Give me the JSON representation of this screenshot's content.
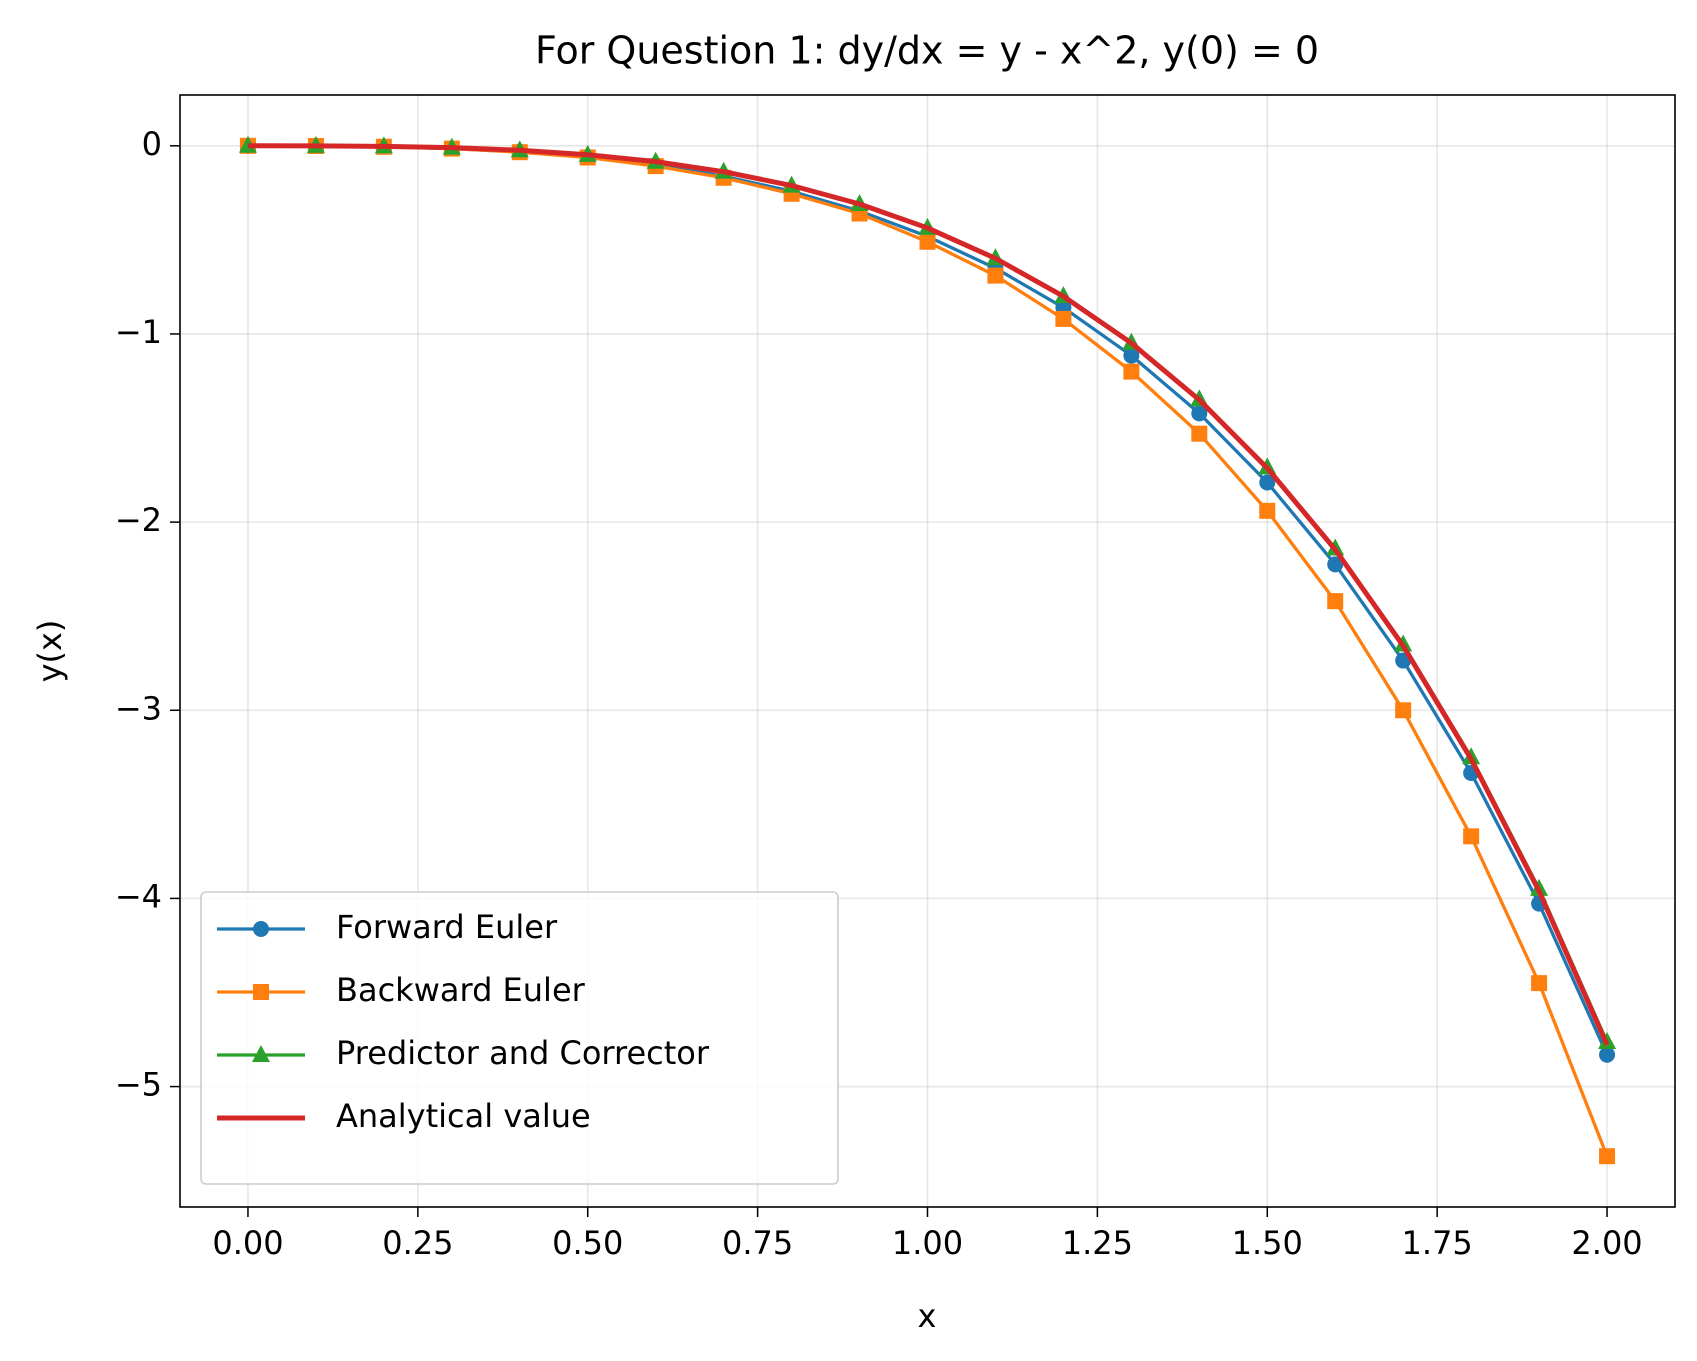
{
  "chart_data": {
    "type": "line",
    "title": "For Question 1: dy/dx = y - x^2, y(0) = 0",
    "xlabel": "x",
    "ylabel": "y(x)",
    "x": [
      0,
      0.1,
      0.2,
      0.3,
      0.4,
      0.5,
      0.6,
      0.7,
      0.8,
      0.9,
      1.0,
      1.1,
      1.2,
      1.3,
      1.4,
      1.5,
      1.6,
      1.7,
      1.8,
      1.9,
      2.0
    ],
    "series": [
      {
        "name": "Forward Euler",
        "color": "#1f77b4",
        "marker": "circle",
        "values": [
          0,
          -0.001,
          -0.0051,
          -0.0146,
          -0.0321,
          -0.0603,
          -0.1023,
          -0.1615,
          -0.2417,
          -0.3469,
          -0.4815,
          -0.6507,
          -0.8598,
          -1.1147,
          -1.4222,
          -1.7894,
          -2.2244,
          -2.7358,
          -3.3334,
          -4.0278,
          -4.8305
        ]
      },
      {
        "name": "Backward Euler",
        "color": "#ff7f0e",
        "marker": "square",
        "values": [
          0,
          -0.001,
          -0.005,
          -0.015,
          -0.034,
          -0.062,
          -0.108,
          -0.17,
          -0.255,
          -0.36,
          -0.51,
          -0.69,
          -0.92,
          -1.2,
          -1.53,
          -1.94,
          -2.42,
          -3.0,
          -3.67,
          -4.45,
          -5.37
        ]
      },
      {
        "name": "Predictor and Corrector",
        "color": "#2ca02c",
        "marker": "triangle",
        "values": [
          0,
          -0.0005,
          -0.0031,
          -0.0101,
          -0.0241,
          -0.048,
          -0.0848,
          -0.138,
          -0.2114,
          -0.3093,
          -0.4363,
          -0.5976,
          -0.7989,
          -1.0465,
          -1.3474,
          -1.7091,
          -2.1403,
          -2.6504,
          -3.2496,
          -3.9495,
          -4.7628
        ]
      },
      {
        "name": "Analytical value",
        "color": "#d62728",
        "values": [
          0,
          -0.0003,
          -0.0028,
          -0.0097,
          -0.0236,
          -0.0474,
          -0.0842,
          -0.1375,
          -0.2111,
          -0.3092,
          -0.4366,
          -0.5983,
          -0.8002,
          -1.0486,
          -1.3504,
          -1.7134,
          -2.1461,
          -2.6579,
          -3.2593,
          -3.9618,
          -4.7781
        ]
      }
    ],
    "xlim": [
      -0.1,
      2.1
    ],
    "ylim": [
      -5.64,
      0.27
    ],
    "xticks": [
      {
        "value": 0,
        "label": "0.00"
      },
      {
        "value": 0.25,
        "label": "0.25"
      },
      {
        "value": 0.5,
        "label": "0.50"
      },
      {
        "value": 0.75,
        "label": "0.75"
      },
      {
        "value": 1,
        "label": "1.00"
      },
      {
        "value": 1.25,
        "label": "1.25"
      },
      {
        "value": 1.5,
        "label": "1.50"
      },
      {
        "value": 1.75,
        "label": "1.75"
      },
      {
        "value": 2,
        "label": "2.00"
      }
    ],
    "yticks": [
      0,
      {
        "value": -1,
        "label": "−1"
      },
      {
        "value": -2,
        "label": "−2"
      },
      {
        "value": -3,
        "label": "−3"
      },
      {
        "value": -4,
        "label": "−4"
      },
      {
        "value": -5,
        "label": "−5"
      }
    ],
    "grid": true,
    "legend": "lower left"
  }
}
